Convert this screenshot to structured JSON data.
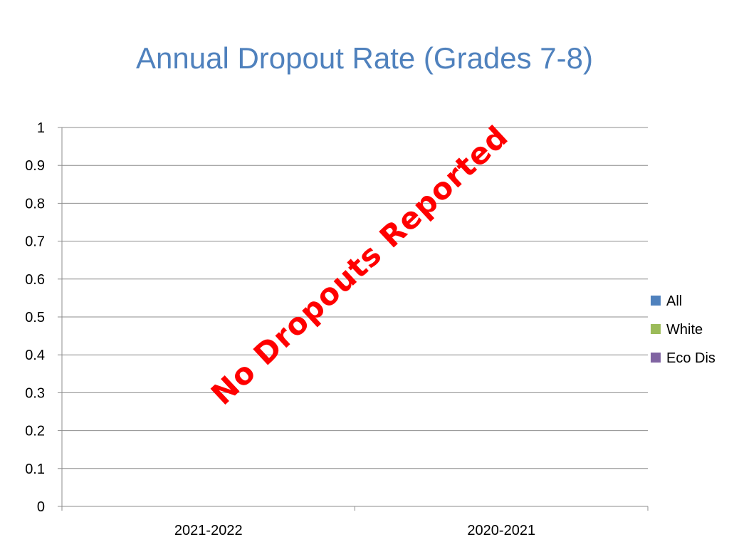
{
  "chart_data": {
    "type": "bar",
    "title": "Annual Dropout Rate (Grades 7-8)",
    "categories": [
      "2021-2022",
      "2020-2021"
    ],
    "series": [
      {
        "name": "All",
        "color": "#4f81bd",
        "values": [
          0,
          0
        ]
      },
      {
        "name": "White",
        "color": "#9bbb59",
        "values": [
          0,
          0
        ]
      },
      {
        "name": "Eco Dis",
        "color": "#8064a2",
        "values": [
          0,
          0
        ]
      }
    ],
    "ylim": [
      0,
      1
    ],
    "yticks": [
      "0",
      "0.1",
      "0.2",
      "0.3",
      "0.4",
      "0.5",
      "0.6",
      "0.7",
      "0.8",
      "0.9",
      "1"
    ],
    "grid": true,
    "legend_position": "right",
    "annotation": "No Dropouts Reported",
    "annotation_color": "#ff0000"
  }
}
